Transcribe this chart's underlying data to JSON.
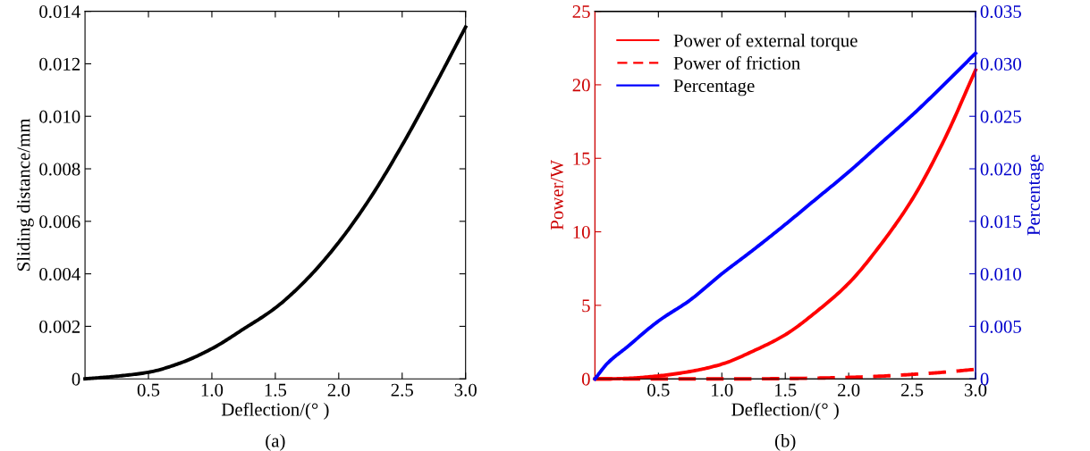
{
  "chart_data": [
    {
      "type": "line",
      "xlabel": "Deflection/(° )",
      "ylabel": "Sliding distance/mm",
      "annotations": [
        "(a)"
      ],
      "x": [
        0,
        0.25,
        0.5,
        0.75,
        1.0,
        1.25,
        1.5,
        1.75,
        2.0,
        2.25,
        2.5,
        2.75,
        3.0
      ],
      "series": [
        {
          "color": "#000000",
          "values": [
            0,
            0.0001,
            0.00025,
            0.0006,
            0.00115,
            0.0019,
            0.0027,
            0.0038,
            0.0052,
            0.0069,
            0.0089,
            0.0111,
            0.0134
          ]
        }
      ],
      "xlim": [
        0,
        3.0
      ],
      "xticks": [
        0.5,
        {
          "value": 1.0,
          "label": "1.0"
        },
        1.5,
        {
          "value": 2.0,
          "label": "2.0"
        },
        2.5,
        {
          "value": 3.0,
          "label": "3.0"
        }
      ],
      "ylim": [
        0,
        0.014
      ],
      "yticks": [
        0,
        0.002,
        0.004,
        0.006,
        0.008,
        {
          "value": 0.01,
          "label": "0.010"
        },
        0.012,
        0.014
      ],
      "grid": false,
      "legend": false,
      "line_style": "solid",
      "marker": "none"
    },
    {
      "type": "line",
      "xlabel": "Deflection/(° )",
      "ylabel": "Power/W",
      "y2label": "Percentage",
      "annotations": [
        "(b)"
      ],
      "x": [
        0,
        0.1,
        0.25,
        0.5,
        0.75,
        1.0,
        1.25,
        1.5,
        1.75,
        2.0,
        2.25,
        2.5,
        2.75,
        3.0
      ],
      "series": [
        {
          "name": "Power of external torque",
          "color": "#ff0000",
          "line_style": "solid",
          "values": [
            0,
            0,
            0.03,
            0.2,
            0.5,
            1.0,
            1.9,
            3.0,
            4.6,
            6.5,
            9.1,
            12.2,
            16.2,
            21.0
          ]
        },
        {
          "name": "Power of friction",
          "color": "#ff0000",
          "line_style": "dashed",
          "values": [
            0,
            0,
            0,
            0,
            0,
            0,
            0,
            0.02,
            0.05,
            0.1,
            0.18,
            0.3,
            0.45,
            0.65
          ]
        },
        {
          "name": "Percentage",
          "color": "#0000ff",
          "line_style": "solid",
          "axis": "y2",
          "values": [
            0,
            0.0015,
            0.003,
            0.0055,
            0.0075,
            0.01,
            0.0123,
            0.0147,
            0.0172,
            0.0197,
            0.0224,
            0.0251,
            0.028,
            0.031
          ]
        }
      ],
      "xlim": [
        0,
        3.0
      ],
      "xticks": [
        0.5,
        {
          "value": 1.0,
          "label": "1.0"
        },
        1.5,
        {
          "value": 2.0,
          "label": "2.0"
        },
        2.5,
        {
          "value": 3.0,
          "label": "3.0"
        }
      ],
      "ylim": [
        0,
        25
      ],
      "yticks": [
        0,
        5,
        10,
        15,
        20,
        25
      ],
      "y2lim": [
        0,
        0.035
      ],
      "y2ticks": [
        0,
        0.005,
        {
          "value": 0.01,
          "label": "0.010"
        },
        0.015,
        {
          "value": 0.02,
          "label": "0.020"
        },
        0.025,
        {
          "value": 0.03,
          "label": "0.030"
        },
        0.035
      ],
      "grid": false,
      "legend": "top left",
      "marker": "none"
    }
  ]
}
